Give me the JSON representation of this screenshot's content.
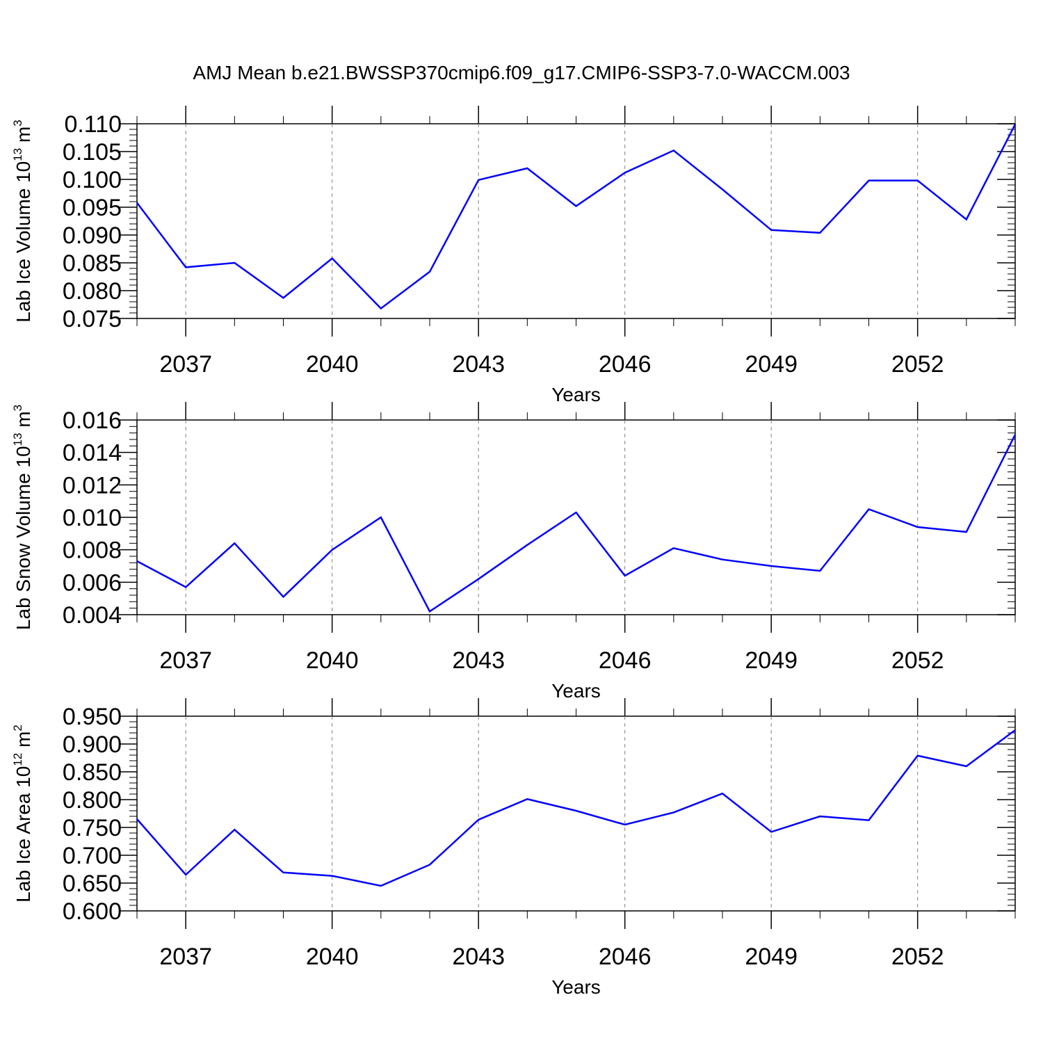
{
  "title": "AMJ Mean b.e21.BWSSP370cmip6.f09_g17.CMIP6-SSP3-7.0-WACCM.003",
  "colors": {
    "line": "#0000ff",
    "axis": "#000000",
    "grid": "#7f7f7f"
  },
  "chart_data": [
    {
      "type": "line",
      "ylabel": {
        "text": "Lab Ice Volume 10",
        "exponent": "13",
        "unit": "m",
        "unit_exponent": "3"
      },
      "xlabel": "Years",
      "xlim": [
        2036,
        2054
      ],
      "ylim": [
        0.075,
        0.11
      ],
      "x_ticks": [
        2037,
        2040,
        2043,
        2046,
        2049,
        2052
      ],
      "y_ticks": [
        "0.075",
        "0.080",
        "0.085",
        "0.090",
        "0.095",
        "0.100",
        "0.105",
        "0.110"
      ],
      "grid": "vertical dashed at x ticks",
      "x": [
        2036,
        2037,
        2038,
        2039,
        2040,
        2041,
        2042,
        2043,
        2044,
        2045,
        2046,
        2047,
        2048,
        2049,
        2050,
        2051,
        2052,
        2053,
        2054
      ],
      "series": [
        {
          "values": [
            0.0958,
            0.0842,
            0.085,
            0.0787,
            0.0858,
            0.0768,
            0.0834,
            0.0999,
            0.102,
            0.0952,
            0.1012,
            0.1052,
            0.0982,
            0.0909,
            0.0904,
            0.0998,
            0.0998,
            0.0928,
            0.1099
          ]
        }
      ]
    },
    {
      "type": "line",
      "ylabel": {
        "text": "Lab Snow Volume 10",
        "exponent": "13",
        "unit": "m",
        "unit_exponent": "3"
      },
      "xlabel": "Years",
      "xlim": [
        2036,
        2054
      ],
      "ylim": [
        0.004,
        0.016
      ],
      "x_ticks": [
        2037,
        2040,
        2043,
        2046,
        2049,
        2052
      ],
      "y_ticks": [
        "0.004",
        "0.006",
        "0.008",
        "0.010",
        "0.012",
        "0.014",
        "0.016"
      ],
      "grid": "vertical dashed at x ticks",
      "x": [
        2036,
        2037,
        2038,
        2039,
        2040,
        2041,
        2042,
        2043,
        2044,
        2045,
        2046,
        2047,
        2048,
        2049,
        2050,
        2051,
        2052,
        2053,
        2054
      ],
      "series": [
        {
          "values": [
            0.0073,
            0.0057,
            0.0084,
            0.0051,
            0.008,
            0.01,
            0.0042,
            0.0062,
            0.0083,
            0.0103,
            0.0064,
            0.0081,
            0.0074,
            0.007,
            0.0067,
            0.0105,
            0.0094,
            0.0091,
            0.0151
          ]
        }
      ]
    },
    {
      "type": "line",
      "ylabel": {
        "text": "Lab Ice Area 10",
        "exponent": "12",
        "unit": "m",
        "unit_exponent": "2"
      },
      "xlabel": "Years",
      "xlim": [
        2036,
        2054
      ],
      "ylim": [
        0.6,
        0.95
      ],
      "x_ticks": [
        2037,
        2040,
        2043,
        2046,
        2049,
        2052
      ],
      "y_ticks": [
        "0.600",
        "0.650",
        "0.700",
        "0.750",
        "0.800",
        "0.850",
        "0.900",
        "0.950"
      ],
      "grid": "vertical dashed at x ticks",
      "x": [
        2036,
        2037,
        2038,
        2039,
        2040,
        2041,
        2042,
        2043,
        2044,
        2045,
        2046,
        2047,
        2048,
        2049,
        2050,
        2051,
        2052,
        2053,
        2054
      ],
      "series": [
        {
          "values": [
            0.765,
            0.665,
            0.746,
            0.669,
            0.663,
            0.645,
            0.683,
            0.764,
            0.801,
            0.78,
            0.755,
            0.777,
            0.811,
            0.742,
            0.77,
            0.763,
            0.879,
            0.86,
            0.925
          ]
        }
      ]
    }
  ]
}
